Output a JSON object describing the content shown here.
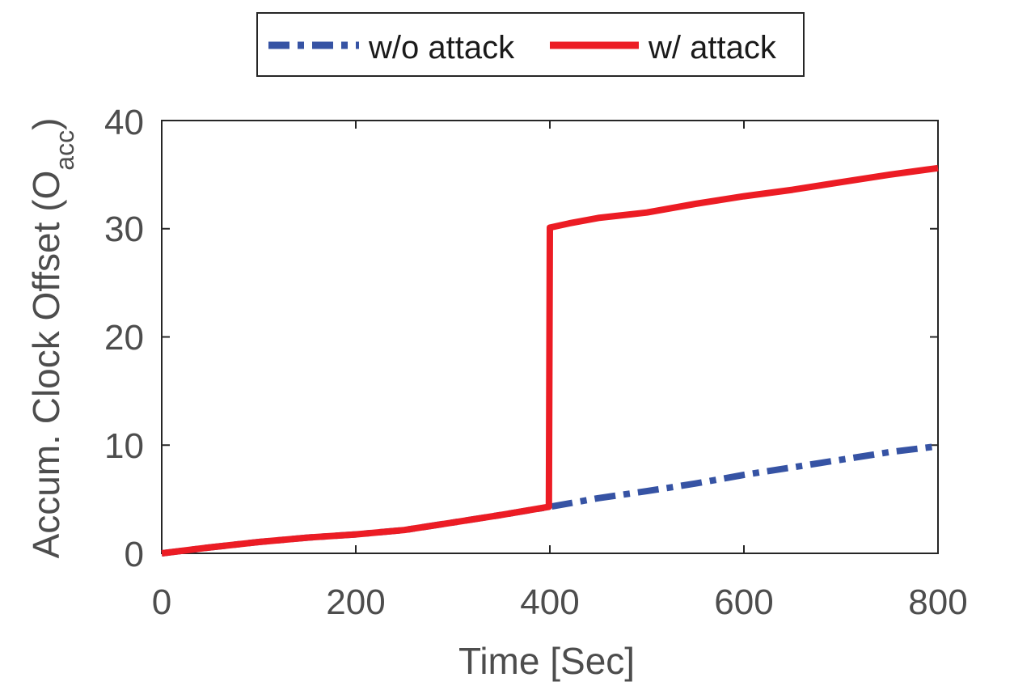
{
  "chart_data": {
    "type": "line",
    "title": "",
    "xlabel": "Time [Sec]",
    "ylabel_main": "Accum. Clock Offset (O",
    "ylabel_sub": "acc",
    "ylabel_close": ")",
    "xlim": [
      0,
      800
    ],
    "ylim": [
      0,
      40
    ],
    "xticks": [
      0,
      200,
      400,
      600,
      800
    ],
    "yticks": [
      0,
      10,
      20,
      30,
      40
    ],
    "xtick_labels": [
      "0",
      "200",
      "400",
      "600",
      "800"
    ],
    "ytick_labels": [
      "0",
      "10",
      "20",
      "30",
      "40"
    ],
    "grid": false,
    "legend_position": "top-center",
    "series": [
      {
        "name": "w/o attack",
        "color": "#3653a4",
        "style": "dashdot",
        "x": [
          0,
          50,
          100,
          150,
          200,
          250,
          300,
          350,
          400,
          450,
          500,
          550,
          600,
          650,
          700,
          750,
          800
        ],
        "y": [
          0,
          0.55,
          1.05,
          1.45,
          1.75,
          2.15,
          2.85,
          3.55,
          4.3,
          5.1,
          5.75,
          6.45,
          7.25,
          7.95,
          8.65,
          9.35,
          9.9
        ]
      },
      {
        "name": "w/ attack",
        "color": "#ec1c24",
        "style": "solid",
        "x": [
          0,
          50,
          100,
          150,
          200,
          250,
          300,
          350,
          399,
          400,
          420,
          450,
          500,
          550,
          600,
          650,
          700,
          750,
          800
        ],
        "y": [
          0,
          0.55,
          1.05,
          1.45,
          1.75,
          2.15,
          2.85,
          3.55,
          4.3,
          30.1,
          30.5,
          31.0,
          31.5,
          32.3,
          33.0,
          33.6,
          34.3,
          35.0,
          35.6
        ]
      }
    ]
  }
}
